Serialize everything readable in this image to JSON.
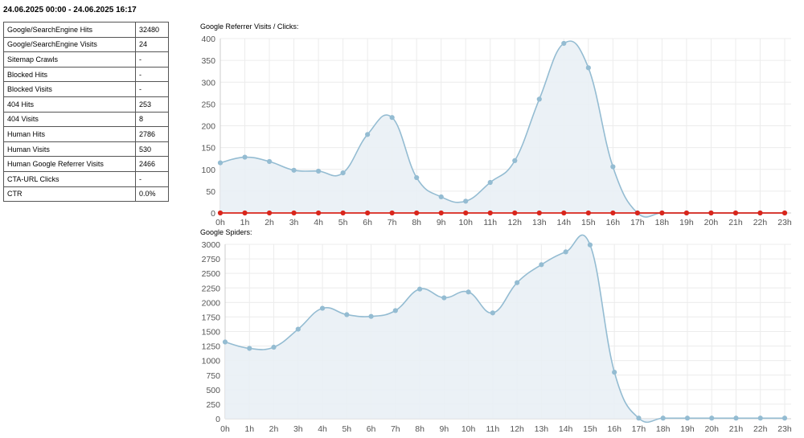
{
  "date_range": "24.06.2025 00:00 - 24.06.2025 16:17",
  "stats": [
    {
      "label": "Google/SearchEngine Hits",
      "value": "32480"
    },
    {
      "label": "Google/SearchEngine Visits",
      "value": "24"
    },
    {
      "label": "Sitemap Crawls",
      "value": "-"
    },
    {
      "label": "Blocked Hits",
      "value": "-"
    },
    {
      "label": "Blocked Visits",
      "value": "-"
    },
    {
      "label": "404 Hits",
      "value": "253"
    },
    {
      "label": "404 Visits",
      "value": "8"
    },
    {
      "label": "Human Hits",
      "value": "2786"
    },
    {
      "label": "Human Visits",
      "value": "530"
    },
    {
      "label": "Human Google Referrer Visits",
      "value": "2466"
    },
    {
      "label": "CTA-URL Clicks",
      "value": "-"
    },
    {
      "label": "CTR",
      "value": "0.0%"
    }
  ],
  "colors": {
    "line": "#94bcd2",
    "fill": "#e9f0f5",
    "clicks": "#d9261c",
    "grid": "#ececec",
    "axis": "#cccccc"
  },
  "chart_data": [
    {
      "type": "area",
      "title": "Google Referrer Visits / Clicks:",
      "categories": [
        "0h",
        "1h",
        "2h",
        "3h",
        "4h",
        "5h",
        "6h",
        "7h",
        "8h",
        "9h",
        "10h",
        "11h",
        "12h",
        "13h",
        "14h",
        "15h",
        "16h",
        "17h",
        "18h",
        "19h",
        "20h",
        "21h",
        "22h",
        "23h"
      ],
      "series": [
        {
          "name": "Google Referrer Visits",
          "values": [
            115,
            128,
            118,
            98,
            96,
            92,
            180,
            219,
            81,
            37,
            27,
            70,
            120,
            261,
            389,
            333,
            106,
            0,
            0,
            0,
            0,
            0,
            0,
            0
          ]
        },
        {
          "name": "Clicks",
          "values": [
            0,
            0,
            0,
            0,
            0,
            0,
            0,
            0,
            0,
            0,
            0,
            0,
            0,
            0,
            0,
            0,
            0,
            0,
            0,
            0,
            0,
            0,
            0,
            0
          ]
        }
      ],
      "ylim": [
        0,
        400
      ],
      "yticks": [
        "0",
        "50",
        "100",
        "150",
        "200",
        "250",
        "300",
        "350",
        "400"
      ]
    },
    {
      "type": "area",
      "title": "Google Spiders:",
      "categories": [
        "0h",
        "1h",
        "2h",
        "3h",
        "4h",
        "5h",
        "6h",
        "7h",
        "8h",
        "9h",
        "10h",
        "11h",
        "12h",
        "13h",
        "14h",
        "15h",
        "16h",
        "17h",
        "18h",
        "19h",
        "20h",
        "21h",
        "22h",
        "23h"
      ],
      "series": [
        {
          "name": "Google Spiders",
          "values": [
            1320,
            1210,
            1230,
            1540,
            1900,
            1790,
            1760,
            1860,
            2230,
            2080,
            2180,
            1820,
            2340,
            2650,
            2870,
            2990,
            800,
            10,
            10,
            10,
            10,
            10,
            10,
            10
          ]
        }
      ],
      "ylim": [
        0,
        3000
      ],
      "yticks": [
        "0",
        "250",
        "500",
        "750",
        "1000",
        "1250",
        "1500",
        "1750",
        "2000",
        "2250",
        "2500",
        "2750",
        "3000"
      ]
    }
  ]
}
